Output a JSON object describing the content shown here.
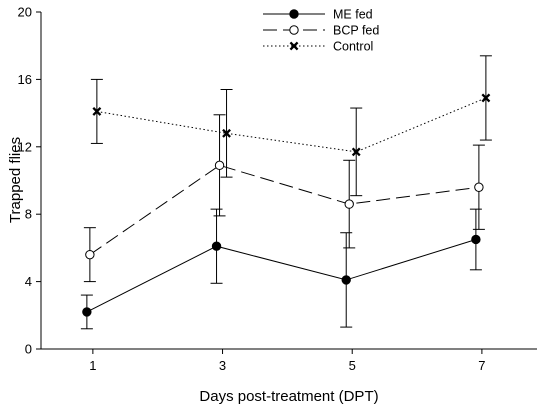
{
  "chart_data": {
    "type": "line",
    "title": "",
    "xlabel": "Days post-treatment (DPT)",
    "ylabel": "Trapped flies",
    "xlim": [
      0.2,
      7.85
    ],
    "ylim": [
      0,
      20
    ],
    "xticks": [
      1,
      3,
      5,
      7
    ],
    "yticks": [
      0,
      4,
      8,
      12,
      16,
      20
    ],
    "grid": false,
    "legend_position": "top-center",
    "series": [
      {
        "name": "ME fed",
        "marker": "filled-circle",
        "line_style": "solid",
        "color": "#000000",
        "x": [
          1,
          3,
          5,
          7
        ],
        "y": [
          2.2,
          6.1,
          4.1,
          6.5
        ],
        "error": [
          1.0,
          2.2,
          2.8,
          1.8
        ]
      },
      {
        "name": "BCP fed",
        "marker": "open-circle",
        "line_style": "dashed",
        "color": "#000000",
        "x": [
          1,
          3,
          5,
          7
        ],
        "y": [
          5.6,
          10.9,
          8.6,
          9.6
        ],
        "error": [
          1.6,
          3.0,
          2.6,
          2.5
        ]
      },
      {
        "name": "Control",
        "marker": "x",
        "line_style": "dotted",
        "color": "#000000",
        "x": [
          1,
          3,
          5,
          7
        ],
        "y": [
          14.1,
          12.8,
          11.7,
          14.9
        ],
        "error": [
          1.9,
          2.6,
          2.6,
          2.5
        ]
      }
    ]
  }
}
